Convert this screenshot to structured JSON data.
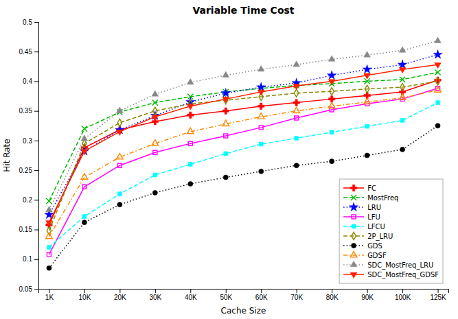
{
  "chart_data": {
    "type": "line",
    "title": "Variable Time Cost",
    "x_label": "Cache Size",
    "y_label": "Hit Rate",
    "categories": [
      "1K",
      "10K",
      "20K",
      "30K",
      "40K",
      "50K",
      "60K",
      "70K",
      "80K",
      "90K",
      "100K",
      "125K"
    ],
    "ylim": [
      0.05,
      0.5
    ],
    "yticks": [
      0.05,
      0.1,
      0.15,
      0.2,
      0.25,
      0.3,
      0.35,
      0.4,
      0.45,
      0.5
    ],
    "grid": false,
    "legend": "lower right",
    "series": [
      {
        "name": "FC",
        "color": "#ff0000",
        "marker": "plus",
        "line_style": "solid",
        "values": [
          0.158,
          0.288,
          0.318,
          0.332,
          0.343,
          0.35,
          0.358,
          0.364,
          0.37,
          0.376,
          0.382,
          0.402
        ]
      },
      {
        "name": "MostFreq",
        "color": "#00bb00",
        "marker": "x",
        "line_style": "dashed",
        "values": [
          0.198,
          0.32,
          0.348,
          0.364,
          0.374,
          0.382,
          0.388,
          0.393,
          0.396,
          0.4,
          0.403,
          0.415
        ]
      },
      {
        "name": "LRU",
        "color": "#0000ff",
        "marker": "star",
        "line_style": "dotted",
        "values": [
          0.175,
          0.282,
          0.318,
          0.342,
          0.365,
          0.38,
          0.39,
          0.397,
          0.41,
          0.42,
          0.428,
          0.445
        ]
      },
      {
        "name": "LFU",
        "color": "#ff00ff",
        "marker": "square-open",
        "line_style": "solid",
        "values": [
          0.108,
          0.222,
          0.258,
          0.28,
          0.295,
          0.308,
          0.322,
          0.338,
          0.352,
          0.362,
          0.37,
          0.388
        ]
      },
      {
        "name": "LFCU",
        "color": "#00ffff",
        "marker": "square",
        "line_style": "dashed",
        "values": [
          0.12,
          0.172,
          0.21,
          0.242,
          0.26,
          0.278,
          0.294,
          0.304,
          0.314,
          0.324,
          0.334,
          0.364
        ]
      },
      {
        "name": "2P_LRU",
        "color": "#888800",
        "marker": "diamond-open",
        "line_style": "dashed",
        "values": [
          0.148,
          0.295,
          0.33,
          0.35,
          0.362,
          0.368,
          0.374,
          0.38,
          0.383,
          0.387,
          0.39,
          0.4
        ]
      },
      {
        "name": "GDS",
        "color": "#000000",
        "marker": "circle",
        "line_style": "dotted",
        "values": [
          0.085,
          0.162,
          0.192,
          0.212,
          0.227,
          0.238,
          0.248,
          0.258,
          0.265,
          0.275,
          0.285,
          0.325
        ]
      },
      {
        "name": "GDSF",
        "color": "#ff8800",
        "marker": "triangle-up-open",
        "line_style": "dashdot",
        "values": [
          0.138,
          0.238,
          0.272,
          0.295,
          0.315,
          0.328,
          0.34,
          0.35,
          0.358,
          0.365,
          0.372,
          0.385
        ]
      },
      {
        "name": "SDC_MostFreq_LRU",
        "color": "#888888",
        "marker": "triangle-up",
        "line_style": "dotted",
        "values": [
          0.183,
          0.303,
          0.35,
          0.378,
          0.398,
          0.41,
          0.42,
          0.428,
          0.437,
          0.444,
          0.452,
          0.468
        ]
      },
      {
        "name": "SDC_MostFreq_GDSF",
        "color": "#ff2200",
        "marker": "triangle-down",
        "line_style": "solid",
        "values": [
          0.162,
          0.282,
          0.315,
          0.34,
          0.358,
          0.37,
          0.382,
          0.392,
          0.4,
          0.41,
          0.42,
          0.428
        ]
      }
    ]
  }
}
